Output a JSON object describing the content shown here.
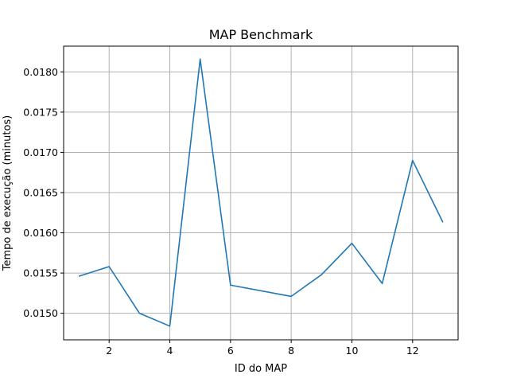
{
  "chart_data": {
    "type": "line",
    "title": "MAP Benchmark",
    "xlabel": "ID do MAP",
    "ylabel": "Tempo de execução (minutos)",
    "xlim": [
      0.5,
      13.5
    ],
    "ylim": [
      0.01467,
      0.01832
    ],
    "xticks": [
      2,
      4,
      6,
      8,
      10,
      12
    ],
    "yticks": [
      0.015,
      0.0155,
      0.016,
      0.0165,
      0.017,
      0.0175,
      0.018
    ],
    "ytick_labels": [
      "0.0150",
      "0.0155",
      "0.0160",
      "0.0165",
      "0.0170",
      "0.0175",
      "0.0180"
    ],
    "grid": true,
    "x": [
      1,
      2,
      3,
      4,
      5,
      6,
      8,
      9,
      10,
      11,
      12,
      13
    ],
    "series": [
      {
        "color": "#1f77b4",
        "values": [
          0.01546,
          0.01558,
          0.015,
          0.01484,
          0.01816,
          0.01535,
          0.01521,
          0.01548,
          0.01587,
          0.01537,
          0.0169,
          0.01613
        ]
      }
    ]
  }
}
